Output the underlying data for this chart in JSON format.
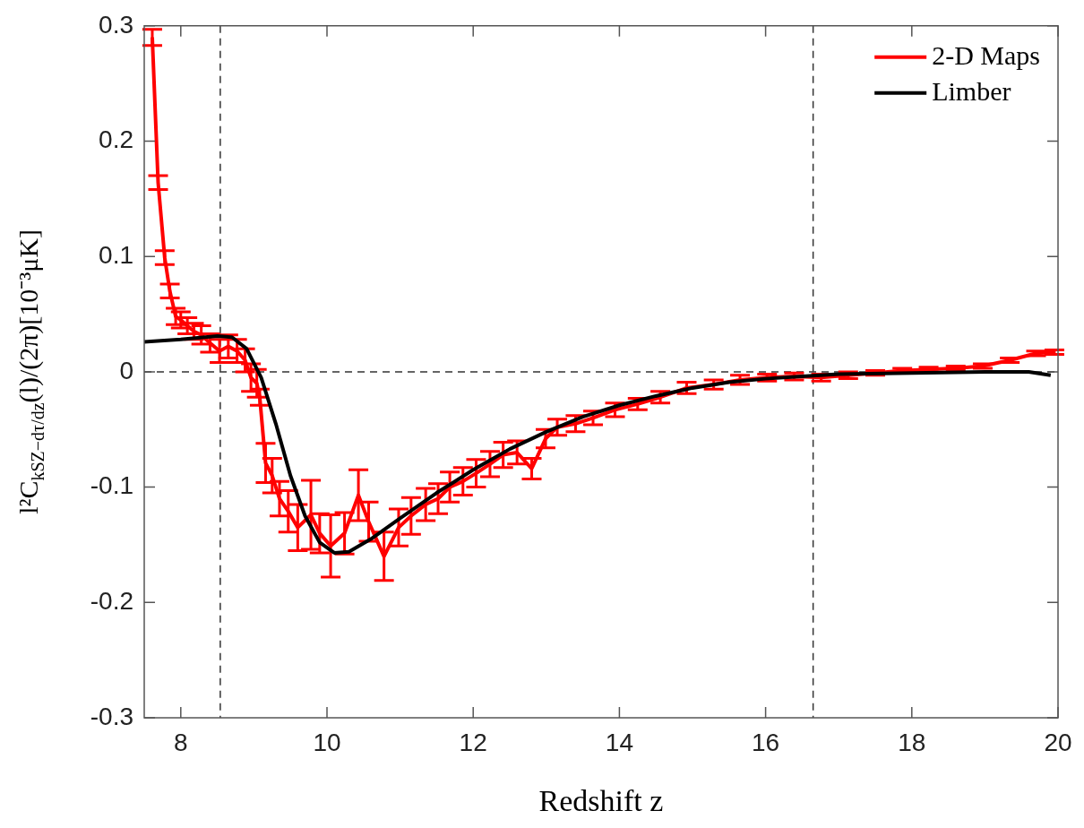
{
  "chart_data": {
    "type": "line",
    "xlabel": "Redshift z",
    "ylabel": "l²C$_{kSZ−dτ/dz}$(l)/(2π)[10⁻³μK]",
    "xlim": [
      7.5,
      20
    ],
    "xticks": [
      8,
      10,
      12,
      14,
      16,
      18,
      20
    ],
    "ylim": [
      -0.3,
      0.3
    ],
    "yticks": [
      -0.3,
      -0.2,
      -0.1,
      0,
      0.1,
      0.2,
      0.3
    ],
    "grid": false,
    "legend": "top right",
    "marker": "none",
    "line_style": "solid",
    "ref_lines": [
      {
        "axis": "x",
        "value": 8.54,
        "color": "#333333",
        "line_style": "dashed"
      },
      {
        "axis": "x",
        "value": 16.65,
        "color": "#333333",
        "line_style": "dashed"
      },
      {
        "axis": "y",
        "value": 0,
        "color": "#333333",
        "line_style": "dashed"
      }
    ],
    "series": [
      {
        "name": "2-D Maps",
        "color": "#ff0000",
        "x": [
          7.61,
          7.69,
          7.78,
          7.85,
          7.93,
          8.0,
          8.09,
          8.18,
          8.28,
          8.4,
          8.53,
          8.65,
          8.77,
          8.88,
          8.96,
          9.04,
          9.08,
          9.16,
          9.25,
          9.35,
          9.47,
          9.6,
          9.78,
          9.9,
          10.05,
          10.24,
          10.43,
          10.57,
          10.78,
          10.98,
          11.15,
          11.35,
          11.52,
          11.68,
          11.86,
          12.04,
          12.23,
          12.41,
          12.6,
          12.8,
          12.99,
          13.15,
          13.4,
          13.64,
          13.94,
          14.25,
          14.56,
          14.92,
          15.29,
          15.65,
          16.02,
          16.39,
          16.76,
          17.13,
          17.5,
          17.87,
          18.23,
          18.6,
          18.97,
          19.34,
          19.7,
          19.95
        ],
        "values": [
          0.29,
          0.164,
          0.099,
          0.07,
          0.048,
          0.045,
          0.04,
          0.035,
          0.032,
          0.025,
          0.018,
          0.022,
          0.018,
          0.01,
          -0.005,
          -0.01,
          -0.022,
          -0.079,
          -0.09,
          -0.11,
          -0.121,
          -0.135,
          -0.124,
          -0.14,
          -0.151,
          -0.14,
          -0.107,
          -0.13,
          -0.16,
          -0.135,
          -0.125,
          -0.115,
          -0.11,
          -0.1,
          -0.095,
          -0.088,
          -0.08,
          -0.072,
          -0.07,
          -0.084,
          -0.058,
          -0.048,
          -0.045,
          -0.04,
          -0.033,
          -0.028,
          -0.022,
          -0.014,
          -0.011,
          -0.007,
          -0.005,
          -0.004,
          -0.005,
          -0.003,
          -0.001,
          0.001,
          0.002,
          0.003,
          0.005,
          0.01,
          0.016,
          0.017
        ],
        "errors": [
          0.007,
          0.006,
          0.006,
          0.006,
          0.007,
          0.007,
          0.007,
          0.007,
          0.008,
          0.008,
          0.01,
          0.01,
          0.01,
          0.01,
          0.012,
          0.012,
          0.007,
          0.017,
          0.015,
          0.015,
          0.018,
          0.02,
          0.03,
          0.017,
          0.027,
          0.018,
          0.022,
          0.017,
          0.021,
          0.016,
          0.016,
          0.014,
          0.013,
          0.013,
          0.012,
          0.012,
          0.011,
          0.011,
          0.01,
          0.009,
          0.008,
          0.007,
          0.007,
          0.006,
          0.006,
          0.005,
          0.005,
          0.005,
          0.004,
          0.004,
          0.003,
          0.003,
          0.003,
          0.003,
          0.002,
          0.002,
          0.002,
          0.002,
          0.002,
          0.002,
          0.002,
          0.002
        ]
      },
      {
        "name": "Limber",
        "color": "#000000",
        "x": [
          7.5,
          8.0,
          8.5,
          8.7,
          8.9,
          9.1,
          9.3,
          9.5,
          9.7,
          9.9,
          10.1,
          10.3,
          10.6,
          11.0,
          11.5,
          12.0,
          12.5,
          13.0,
          13.5,
          14.0,
          14.5,
          15.0,
          15.5,
          16.0,
          16.5,
          17.0,
          18.0,
          19.0,
          19.6,
          19.9
        ],
        "values": [
          0.026,
          0.028,
          0.031,
          0.03,
          0.02,
          -0.005,
          -0.045,
          -0.09,
          -0.125,
          -0.148,
          -0.157,
          -0.156,
          -0.145,
          -0.127,
          -0.105,
          -0.085,
          -0.067,
          -0.052,
          -0.039,
          -0.029,
          -0.021,
          -0.014,
          -0.009,
          -0.006,
          -0.004,
          -0.002,
          -0.001,
          0,
          0,
          -0.003
        ]
      }
    ]
  }
}
